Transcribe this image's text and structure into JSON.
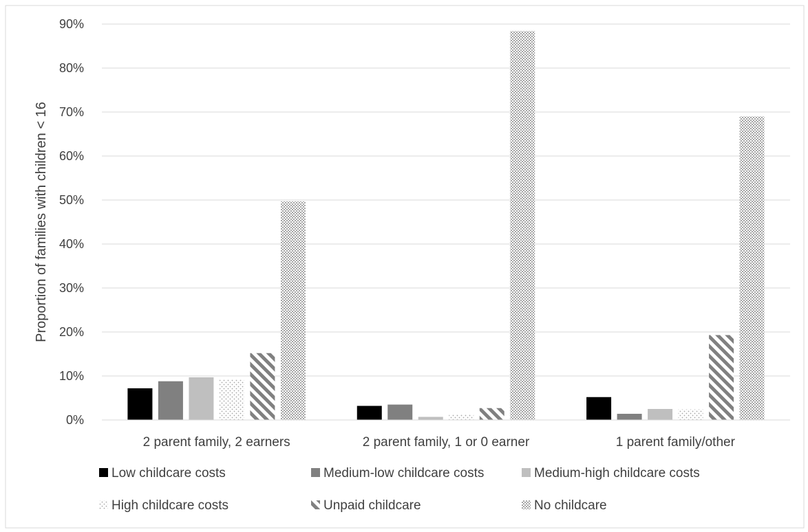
{
  "chart_data": {
    "type": "bar",
    "title": "",
    "xlabel": "",
    "ylabel": "Proportion of families with children < 16",
    "ylim": [
      0,
      0.9
    ],
    "ytick_step": 0.1,
    "yticks": [
      "0%",
      "10%",
      "20%",
      "30%",
      "40%",
      "50%",
      "60%",
      "70%",
      "80%",
      "90%"
    ],
    "grid": true,
    "legend_position": "bottom",
    "categories": [
      "2 parent family, 2 earners",
      "2 parent family, 1 or 0 earner",
      "1 parent family/other"
    ],
    "series": [
      {
        "name": "Low childcare costs",
        "pattern": "solid",
        "color": "#000000",
        "values": [
          0.072,
          0.032,
          0.052
        ]
      },
      {
        "name": "Medium-low childcare costs",
        "pattern": "solid",
        "color": "#808080",
        "values": [
          0.088,
          0.035,
          0.014
        ]
      },
      {
        "name": "Medium-high childcare costs",
        "pattern": "solid",
        "color": "#bfbfbf",
        "values": [
          0.097,
          0.007,
          0.025
        ]
      },
      {
        "name": "High childcare costs",
        "pattern": "dots",
        "color": "#a6a6a6",
        "values": [
          0.092,
          0.012,
          0.024
        ]
      },
      {
        "name": "Unpaid childcare",
        "pattern": "diagonal",
        "color": "#808080",
        "values": [
          0.152,
          0.027,
          0.193
        ]
      },
      {
        "name": "No childcare",
        "pattern": "checker",
        "color": "#a6a6a6",
        "values": [
          0.497,
          0.884,
          0.69
        ]
      }
    ]
  }
}
